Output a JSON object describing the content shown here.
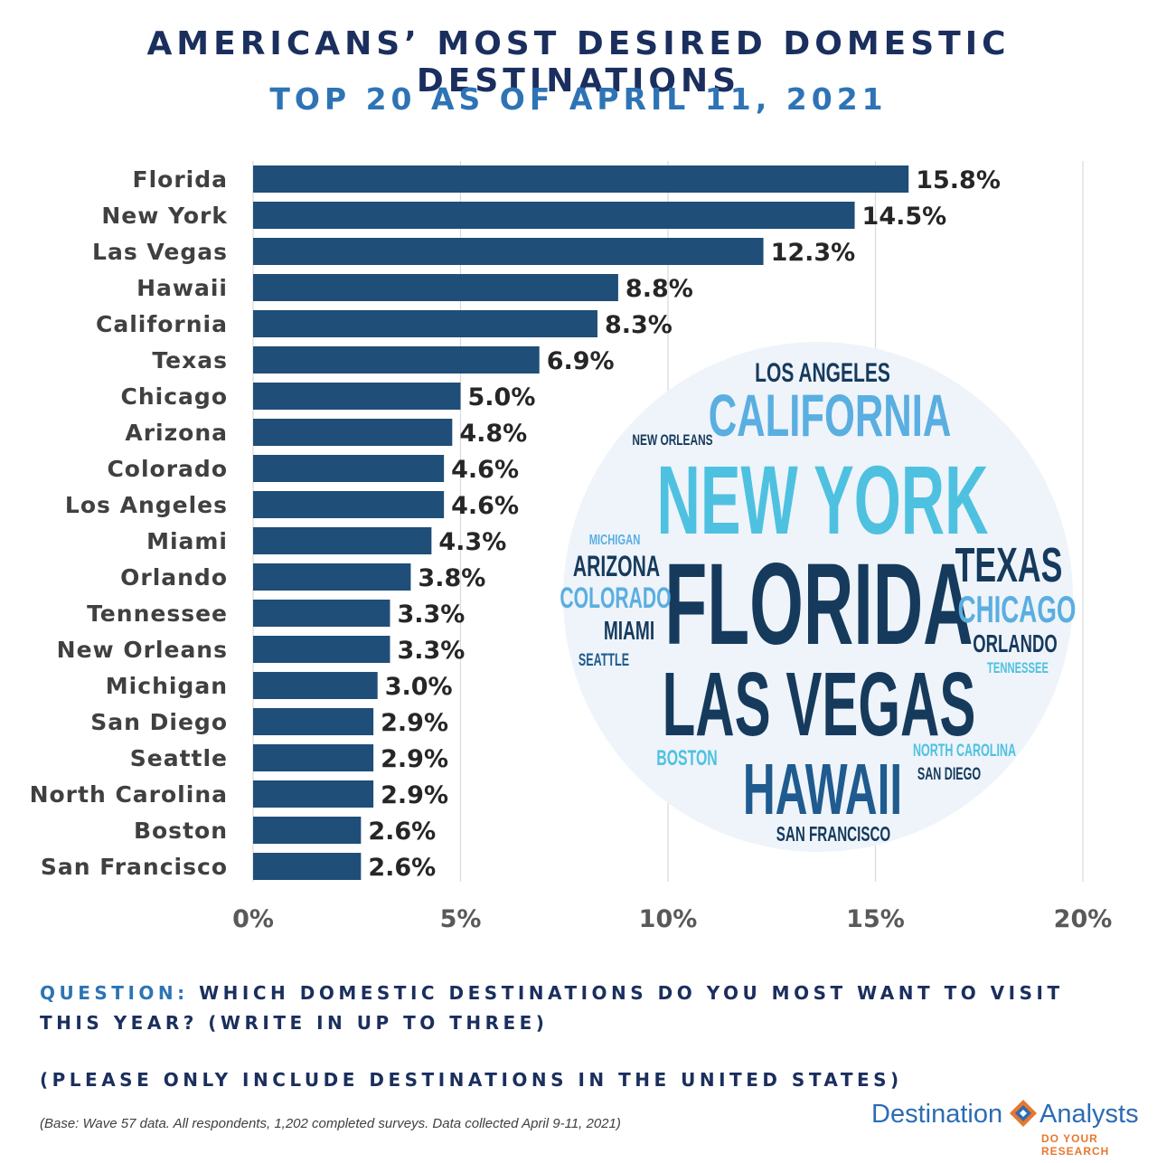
{
  "title": "AMERICANS’ MOST DESIRED DOMESTIC DESTINATIONS",
  "subtitle": "TOP 20 AS OF APRIL 11, 2021",
  "chart_data": {
    "type": "bar",
    "orientation": "horizontal",
    "categories": [
      "Florida",
      "New York",
      "Las Vegas",
      "Hawaii",
      "California",
      "Texas",
      "Chicago",
      "Arizona",
      "Colorado",
      "Los Angeles",
      "Miami",
      "Orlando",
      "Tennessee",
      "New Orleans",
      "Michigan",
      "San Diego",
      "Seattle",
      "North Carolina",
      "Boston",
      "San Francisco"
    ],
    "values": [
      15.8,
      14.5,
      12.3,
      8.8,
      8.3,
      6.9,
      5.0,
      4.8,
      4.6,
      4.6,
      4.3,
      3.8,
      3.3,
      3.3,
      3.0,
      2.9,
      2.9,
      2.9,
      2.6,
      2.6
    ],
    "value_labels": [
      "15.8%",
      "14.5%",
      "12.3%",
      "8.8%",
      "8.3%",
      "6.9%",
      "5.0%",
      "4.8%",
      "4.6%",
      "4.6%",
      "4.3%",
      "3.8%",
      "3.3%",
      "3.3%",
      "3.0%",
      "2.9%",
      "2.9%",
      "2.9%",
      "2.6%",
      "2.6%"
    ],
    "xlim": [
      0,
      20
    ],
    "ticks": [
      0,
      5,
      10,
      15,
      20
    ],
    "tick_labels": [
      "0%",
      "5%",
      "10%",
      "15%",
      "20%"
    ],
    "grid": true,
    "bar_color": "#1f4e79"
  },
  "word_cloud": {
    "words": [
      "LOS ANGELES",
      "CALIFORNIA",
      "NEW ORLEANS",
      "NEW YORK",
      "MICHIGAN",
      "ARIZONA",
      "FLORIDA",
      "TEXAS",
      "COLORADO",
      "CHICAGO",
      "MIAMI",
      "ORLANDO",
      "SEATTLE",
      "TENNESSEE",
      "LAS VEGAS",
      "BOSTON",
      "NORTH CAROLINA",
      "SAN DIEGO",
      "HAWAII",
      "SAN FRANCISCO"
    ],
    "colors": {
      "dark": "#163a5c",
      "mid": "#1f5b8f",
      "light": "#4fc1e0",
      "sky": "#5aaee0"
    }
  },
  "question": {
    "label": "QUESTION:",
    "text": "WHICH DOMESTIC DESTINATIONS DO YOU MOST WANT TO VISIT THIS YEAR? (WRITE IN UP TO THREE)",
    "note": "(PLEASE ONLY INCLUDE DESTINATIONS IN THE UNITED STATES)"
  },
  "base_note": "(Base: Wave 57 data. All respondents, 1,202 completed surveys. Data collected April 9-11, 2021)",
  "logo": {
    "word1": "Destination",
    "word2": "Analysts",
    "tagline": "DO YOUR RESEARCH"
  }
}
